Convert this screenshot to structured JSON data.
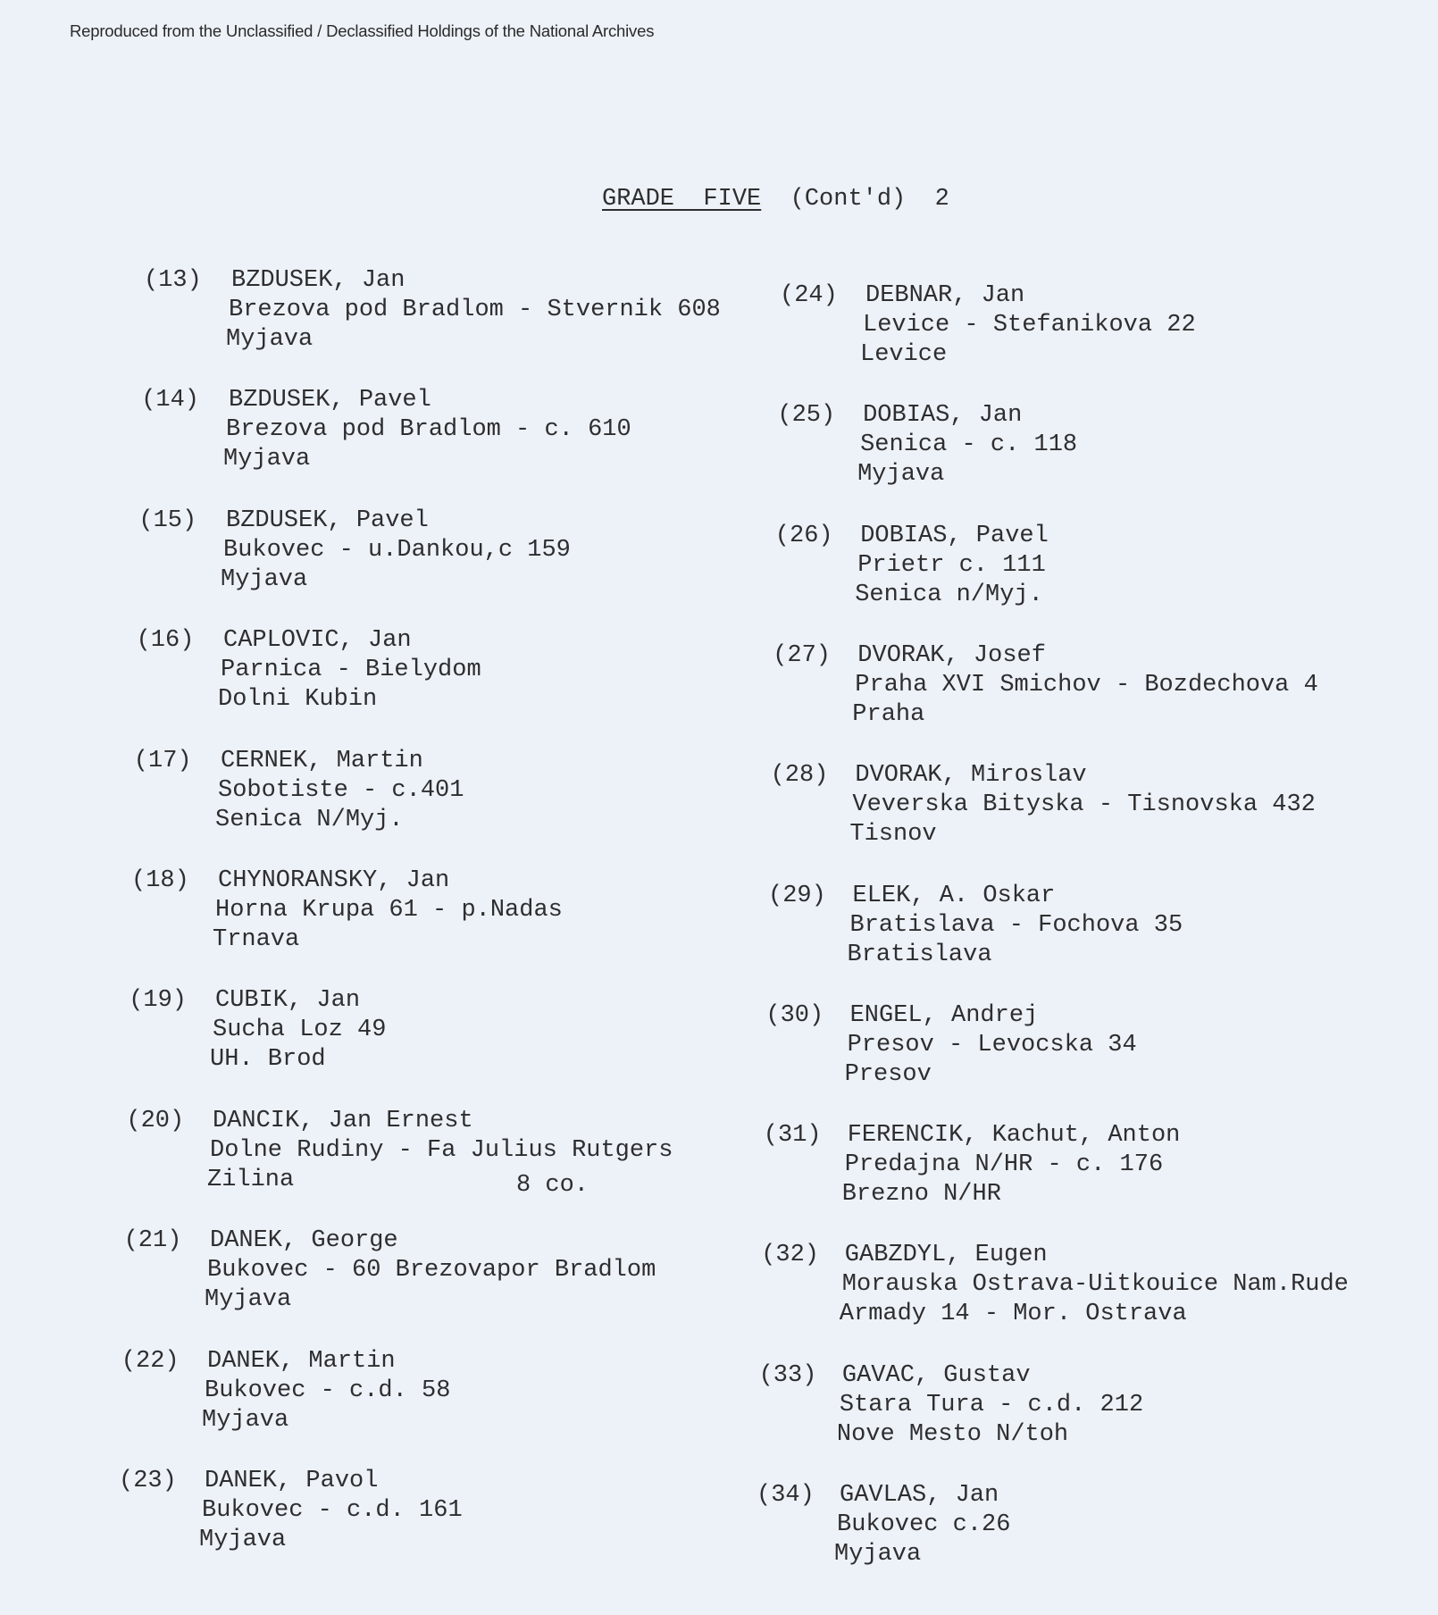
{
  "header": "Reproduced from the Unclassified / Declassified Holdings of the National Archives",
  "title": {
    "heading": "GRADE  FIVE",
    "suffix": "(Cont'd)",
    "page": "2"
  },
  "left_column": [
    {
      "number": "(13)",
      "name": "BZDUSEK, Jan",
      "address": "Brezova pod Bradlom - Stvernik 608",
      "district": "Myjava"
    },
    {
      "number": "(14)",
      "name": "BZDUSEK, Pavel",
      "address": "Brezova pod Bradlom - c. 610",
      "district": "Myjava"
    },
    {
      "number": "(15)",
      "name": "BZDUSEK, Pavel",
      "address": "Bukovec - u.Dankou,c 159",
      "district": "Myjava"
    },
    {
      "number": "(16)",
      "name": "CAPLOVIC, Jan",
      "address": "Parnica - Bielydom",
      "district": "Dolni Kubin"
    },
    {
      "number": "(17)",
      "name": "CERNEK, Martin",
      "address": "Sobotiste - c.401",
      "district": "Senica N/Myj."
    },
    {
      "number": "(18)",
      "name": "CHYNORANSKY, Jan",
      "address": "Horna Krupa 61 - p.Nadas",
      "district": "Trnava"
    },
    {
      "number": "(19)",
      "name": "CUBIK, Jan",
      "address": "Sucha Loz 49",
      "district": "UH. Brod"
    },
    {
      "number": "(20)",
      "name": "DANCIK, Jan Ernest",
      "address": "Dolne Rudiny - Fa Julius Rutgers",
      "district": "Zilina",
      "extra": "8 co."
    },
    {
      "number": "(21)",
      "name": "DANEK, George",
      "address": "Bukovec - 60 Brezovapor Bradlom",
      "district": "Myjava"
    },
    {
      "number": "(22)",
      "name": "DANEK, Martin",
      "address": "Bukovec - c.d. 58",
      "district": "Myjava"
    },
    {
      "number": "(23)",
      "name": "DANEK, Pavol",
      "address": "Bukovec - c.d. 161",
      "district": "Myjava"
    }
  ],
  "right_column": [
    {
      "number": "(24)",
      "name": "DEBNAR, Jan",
      "address": "Levice - Stefanikova 22",
      "district": "Levice"
    },
    {
      "number": "(25)",
      "name": "DOBIAS, Jan",
      "address": "Senica - c. 118",
      "district": "Myjava"
    },
    {
      "number": "(26)",
      "name": "DOBIAS, Pavel",
      "address": "Prietr c. 111",
      "district": "Senica n/Myj."
    },
    {
      "number": "(27)",
      "name": "DVORAK, Josef",
      "address": "Praha XVI Smichov - Bozdechova 4",
      "district": "Praha"
    },
    {
      "number": "(28)",
      "name": "DVORAK, Miroslav",
      "address": "Veverska Bityska - Tisnovska 432",
      "district": "Tisnov"
    },
    {
      "number": "(29)",
      "name": "ELEK, A. Oskar",
      "address": "Bratislava - Fochova 35",
      "district": "Bratislava"
    },
    {
      "number": "(30)",
      "name": "ENGEL, Andrej",
      "address": "Presov - Levocska 34",
      "district": "Presov"
    },
    {
      "number": "(31)",
      "name": "FERENCIK, Kachut, Anton",
      "address": "Predajna N/HR - c. 176",
      "district": "Brezno N/HR"
    },
    {
      "number": "(32)",
      "name": "GABZDYL, Eugen",
      "address": "Morauska Ostrava-Uitkouice Nam.Rude",
      "district": "Armady 14 - Mor. Ostrava"
    },
    {
      "number": "(33)",
      "name": "GAVAC, Gustav",
      "address": "Stara Tura - c.d. 212",
      "district": "Nove Mesto N/toh"
    },
    {
      "number": "(34)",
      "name": "GAVLAS, Jan",
      "address": "Bukovec c.26",
      "district": "Myjava"
    }
  ],
  "colors": {
    "paper": "#edf2f8",
    "ink": "#2e2e30"
  }
}
